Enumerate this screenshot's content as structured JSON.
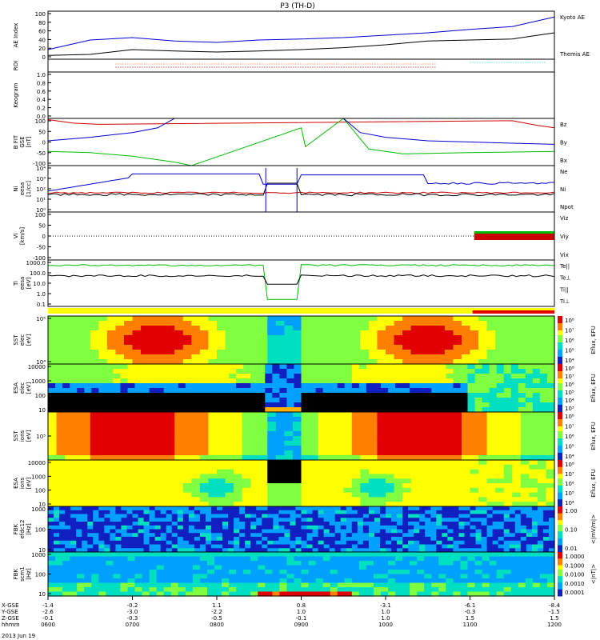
{
  "title": "P3 (TH-D)",
  "date_label": "2013 Jun 19",
  "panels": [
    {
      "id": "ae",
      "ylabel": "AE Index",
      "yticks": [
        "100",
        "80",
        "60",
        "40",
        "20",
        "0"
      ],
      "legend": [
        {
          "text": "Kyoto AE",
          "color": "#0000cc"
        },
        {
          "text": "Themis AE",
          "color": "#000000"
        }
      ]
    },
    {
      "id": "roi",
      "ylabel": "ROI",
      "yticks": [],
      "legend": []
    },
    {
      "id": "keogram",
      "ylabel": "Keogram",
      "yticks": [
        "1.0",
        "0.8",
        "0.6",
        "0.4",
        "0.2",
        "0.0"
      ],
      "legend": []
    },
    {
      "id": "bfit",
      "ylabel": "B FIT\nGSE\n[nT]",
      "yticks": [
        "100",
        "50",
        "0",
        "-50",
        "-100"
      ],
      "legend": [
        {
          "text": "Bz",
          "color": "#cc0000"
        },
        {
          "text": "By",
          "color": "#00bb00"
        },
        {
          "text": "Bx",
          "color": "#0000cc"
        }
      ]
    },
    {
      "id": "ni",
      "ylabel": "Ni\neesa\n[1/cc]",
      "yticks": [
        "10⁴",
        "10³",
        "10²",
        "10¹",
        "10⁰"
      ],
      "legend": [
        {
          "text": "Ne",
          "color": "#cc0000"
        },
        {
          "text": "Ni",
          "color": "#000000"
        },
        {
          "text": "Npot",
          "color": "#0000cc"
        }
      ]
    },
    {
      "id": "vi",
      "ylabel": "Vi\n[km/s]",
      "yticks": [
        "100",
        "50",
        "0",
        "-50",
        "-100"
      ],
      "legend": [
        {
          "text": "Viz",
          "color": "#cc0000"
        },
        {
          "text": "Viy",
          "color": "#00bb00"
        },
        {
          "text": "Vix",
          "color": "#0000cc"
        }
      ]
    },
    {
      "id": "te",
      "ylabel": "Ti\neesa\n[eV]",
      "yticks": [
        "1000.0",
        "100.0",
        "10.0",
        "1.0",
        "0.1"
      ],
      "legend": [
        {
          "text": "Te||",
          "color": "#000000"
        },
        {
          "text": "Te⊥",
          "color": "#cc0000"
        },
        {
          "text": "Ti||",
          "color": "#00bb00"
        },
        {
          "text": "Ti⊥",
          "color": "#0000cc"
        }
      ]
    },
    {
      "id": "sst_e",
      "ylabel": "SST\nelec\n[eV]",
      "yticks": [
        "10⁵",
        "10⁴"
      ],
      "legend": []
    },
    {
      "id": "esa_e",
      "ylabel": "ESA\nelec\n[eV]",
      "yticks": [
        "10000",
        "1000",
        "100",
        "10"
      ],
      "legend": []
    },
    {
      "id": "sst_i",
      "ylabel": "SST\nions\n[eV]",
      "yticks": [
        "10⁵"
      ],
      "legend": []
    },
    {
      "id": "esa_i",
      "ylabel": "ESA\nions\n[eV]",
      "yticks": [
        "10000",
        "1000",
        "100",
        "10"
      ],
      "legend": []
    },
    {
      "id": "fbk1",
      "ylabel": "FBK\nefdc12\n[Hz]",
      "yticks": [
        "1000",
        "100",
        "10"
      ],
      "legend": []
    },
    {
      "id": "fbk2",
      "ylabel": "FBK\nscm1\n[Hz]",
      "yticks": [
        "1000",
        "100",
        "10"
      ],
      "legend": []
    }
  ],
  "colorbars": [
    {
      "id": "cb1",
      "label": "Eflux, EFU",
      "ticks": [
        "10⁸",
        "10⁷",
        "10⁶",
        "10⁵",
        "10⁴"
      ]
    },
    {
      "id": "cb2",
      "label": "Eflux, EFU",
      "ticks": [
        "10⁸",
        "10⁷",
        "10⁶",
        "10⁵",
        "10⁴",
        "10³"
      ]
    },
    {
      "id": "cb3",
      "label": "Eflux, EFU",
      "ticks": [
        "10⁸",
        "10⁷",
        "10⁶",
        "10⁵",
        "10⁴"
      ]
    },
    {
      "id": "cb4",
      "label": "Eflux, EFU",
      "ticks": [
        "10⁸",
        "10⁷",
        "10⁶",
        "10⁵",
        "10⁴"
      ]
    },
    {
      "id": "cb5",
      "label": "<|mV/m|>",
      "ticks": [
        "1.00",
        "0.10",
        "0.01"
      ]
    },
    {
      "id": "cb6",
      "label": "<|nT|>",
      "ticks": [
        "1.0000",
        "0.1000",
        "0.0100",
        "0.0010",
        "0.0001"
      ]
    }
  ],
  "xaxis": {
    "row_labels": [
      "X-GSE",
      "Y-GSE",
      "Z-GSE",
      "hhmm"
    ],
    "columns": [
      {
        "v": [
          "-1.4",
          "-2.6",
          "-0.1",
          "0600"
        ]
      },
      {
        "v": [
          "-0.2",
          "-3.0",
          "-0.3",
          "0700"
        ]
      },
      {
        "v": [
          "1.1",
          "-2.2",
          "-0.5",
          "0800"
        ]
      },
      {
        "v": [
          "0.8",
          "1.0",
          "-0.1",
          "0900"
        ]
      },
      {
        "v": [
          "-3.1",
          "1.0",
          "1.0",
          "1000"
        ]
      },
      {
        "v": [
          "-6.1",
          "-0.3",
          "1.5",
          "1100"
        ]
      },
      {
        "v": [
          "-8.4",
          "-1.5",
          "1.5",
          "1200"
        ]
      }
    ]
  },
  "chart_data": {
    "type": "line",
    "title": "P3 (TH-D)",
    "x_range_hours": [
      6,
      12
    ],
    "series": [
      {
        "name": "Kyoto AE",
        "panel": "ae",
        "t": [
          6,
          6.5,
          7,
          7.5,
          8,
          8.5,
          9,
          9.5,
          10,
          10.5,
          11,
          11.5,
          12
        ],
        "values": [
          20,
          40,
          45,
          38,
          35,
          40,
          42,
          45,
          50,
          55,
          62,
          68,
          88
        ]
      },
      {
        "name": "Themis AE",
        "panel": "ae",
        "t": [
          6,
          6.5,
          7,
          7.5,
          8,
          8.5,
          9,
          9.5,
          10,
          10.5,
          11,
          11.5,
          12
        ],
        "values": [
          8,
          10,
          20,
          17,
          15,
          17,
          20,
          24,
          30,
          38,
          40,
          42,
          55
        ]
      },
      {
        "name": "Bz",
        "panel": "bfit",
        "t": [
          6,
          6.3,
          6.6,
          11.5,
          11.8,
          12
        ],
        "values": [
          95,
          80,
          75,
          90,
          70,
          60
        ]
      },
      {
        "name": "By",
        "panel": "bfit",
        "t": [
          6,
          6.5,
          7,
          7.5,
          7.7,
          9.0,
          9.05,
          9.5,
          9.8,
          10.2,
          11,
          12
        ],
        "values": [
          -40,
          -45,
          -60,
          -85,
          -100,
          60,
          -20,
          100,
          -30,
          -50,
          -45,
          -40
        ]
      },
      {
        "name": "Bx",
        "panel": "bfit",
        "t": [
          6,
          6.5,
          7,
          7.3,
          7.5,
          9.5,
          9.7,
          10,
          10.5,
          11,
          11.5,
          12
        ],
        "values": [
          5,
          20,
          40,
          60,
          100,
          100,
          40,
          20,
          5,
          0,
          -5,
          -10
        ]
      }
    ]
  }
}
